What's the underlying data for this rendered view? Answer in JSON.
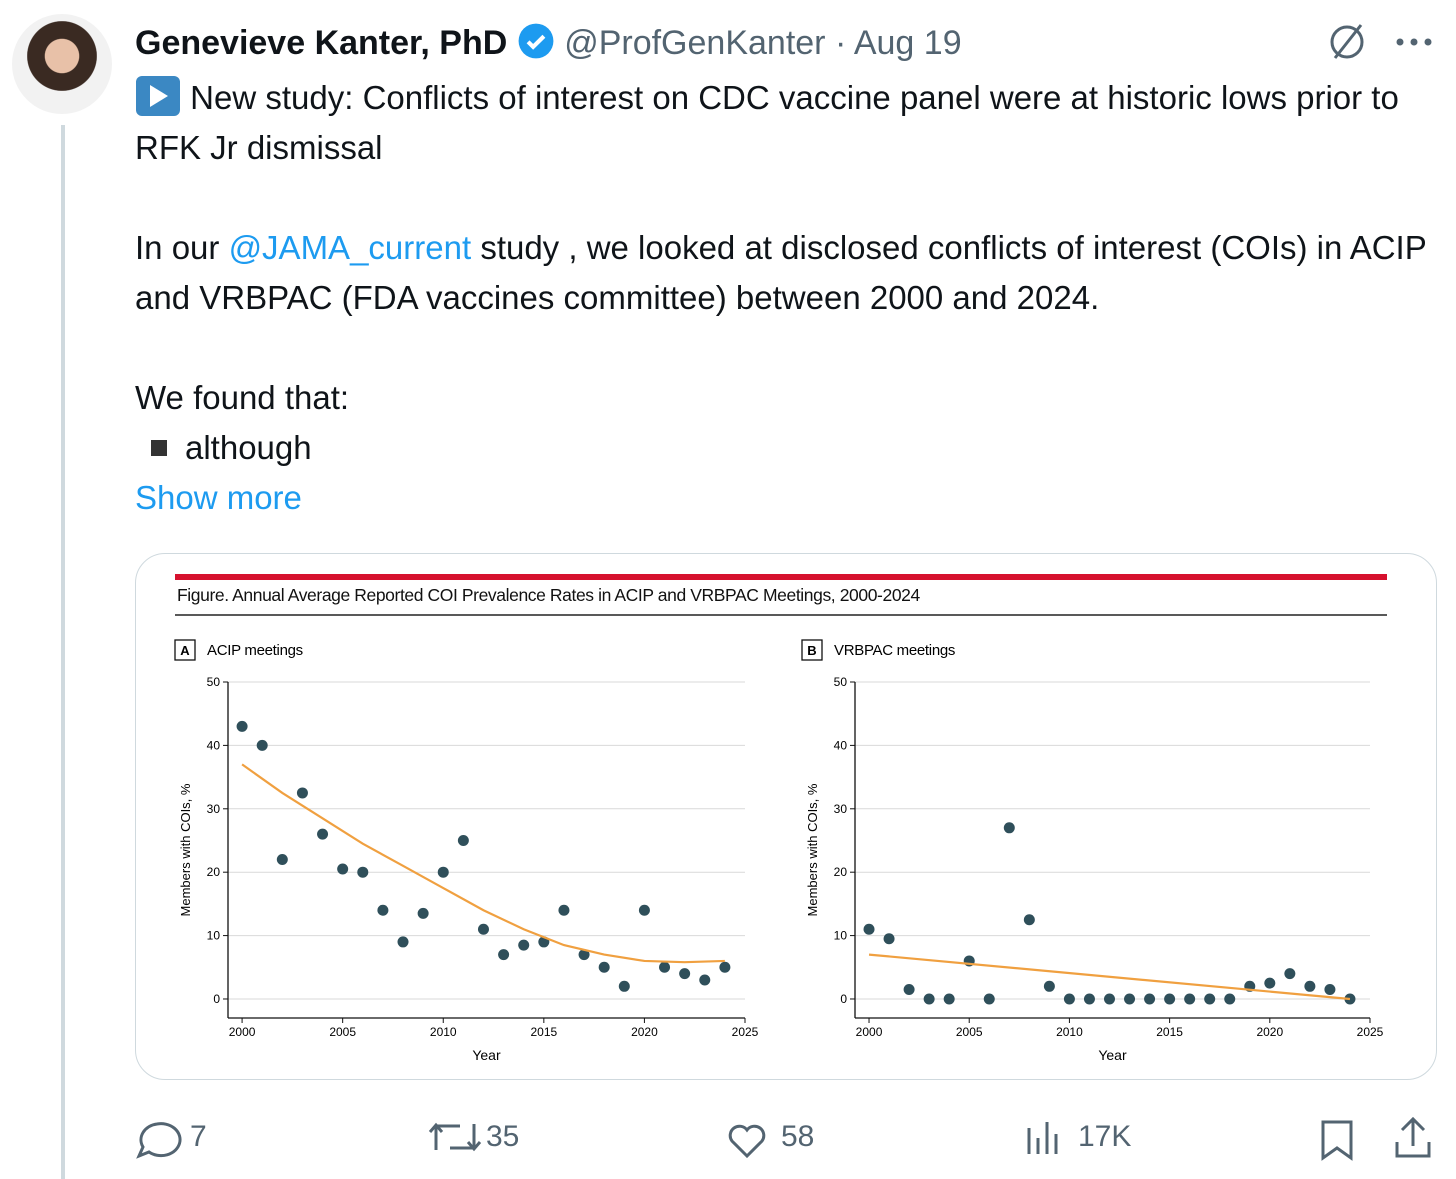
{
  "tweet": {
    "author": "Genevieve Kanter, PhD",
    "handle": "@ProfGenKanter",
    "date": "· Aug 19",
    "paragraph1": "New study: Conflicts of interest on CDC vaccine panel were at historic lows prior to RFK Jr dismissal",
    "paragraph2_start": "In our",
    "mention": "@JAMA_current",
    "paragraph2_end": "study , we looked at disclosed conflicts of interest (COIs) in ACIP and VRBPAC (FDA vaccines committee) between 2000 and 2024.",
    "paragraph3": "We found that:",
    "bullet": "although",
    "show_more": "Show more",
    "replies": "7",
    "reposts": "35",
    "likes": "58",
    "views": "17K"
  },
  "figure_title": "Figure. Annual Average Reported COI Prevalence Rates in ACIP and VRBPAC Meetings, 2000-2024",
  "chart_data": [
    {
      "type": "scatter",
      "panel": "A",
      "title": "ACIP meetings",
      "x_label": "Year",
      "y_label": "Members with COIs, %",
      "xlim": [
        1999.3,
        2025
      ],
      "xticks": [
        2000,
        2005,
        2010,
        2015,
        2020,
        2025
      ],
      "ylim": [
        -3,
        50
      ],
      "yticks": [
        0,
        10,
        20,
        30,
        40,
        50
      ],
      "grid": true,
      "series": [
        {
          "mode": "markers",
          "color": "#2f4f5a",
          "x": [
            2000,
            2001,
            2002,
            2003,
            2004,
            2005,
            2006,
            2007,
            2008,
            2009,
            2010,
            2011,
            2012,
            2013,
            2014,
            2015,
            2016,
            2017,
            2018,
            2019,
            2020,
            2021,
            2022,
            2023,
            2024
          ],
          "values": [
            43,
            40,
            22,
            32.5,
            26,
            20.5,
            20,
            14,
            9,
            13.5,
            20,
            25,
            11,
            7,
            8.5,
            9,
            14,
            7,
            5,
            2,
            14,
            5,
            4,
            3,
            5
          ]
        },
        {
          "mode": "line",
          "color": "#f0a040",
          "x": [
            2000,
            2002,
            2004,
            2006,
            2008,
            2010,
            2012,
            2014,
            2016,
            2018,
            2020,
            2022,
            2024
          ],
          "values": [
            37,
            32.5,
            28.5,
            24.5,
            21,
            17.5,
            14,
            11,
            8.5,
            7,
            6,
            5.8,
            6
          ]
        }
      ]
    },
    {
      "type": "scatter",
      "panel": "B",
      "title": "VRBPAC meetings",
      "x_label": "Year",
      "y_label": "Members with COIs, %",
      "xlim": [
        1999.3,
        2025
      ],
      "xticks": [
        2000,
        2005,
        2010,
        2015,
        2020,
        2025
      ],
      "ylim": [
        -3,
        50
      ],
      "yticks": [
        0,
        10,
        20,
        30,
        40,
        50
      ],
      "grid": true,
      "series": [
        {
          "mode": "markers",
          "color": "#2f4f5a",
          "x": [
            2000,
            2001,
            2002,
            2003,
            2004,
            2005,
            2006,
            2007,
            2008,
            2009,
            2010,
            2011,
            2012,
            2013,
            2014,
            2015,
            2016,
            2017,
            2018,
            2019,
            2020,
            2021,
            2022,
            2023,
            2024
          ],
          "values": [
            11,
            9.5,
            1.5,
            0,
            0,
            6,
            0,
            27,
            12.5,
            2,
            0,
            0,
            0,
            0,
            0,
            0,
            0,
            0,
            0,
            2,
            2.5,
            4,
            2,
            1.5,
            0
          ]
        },
        {
          "mode": "line",
          "color": "#f0a040",
          "x": [
            2000,
            2024
          ],
          "values": [
            7,
            0
          ]
        }
      ]
    }
  ]
}
